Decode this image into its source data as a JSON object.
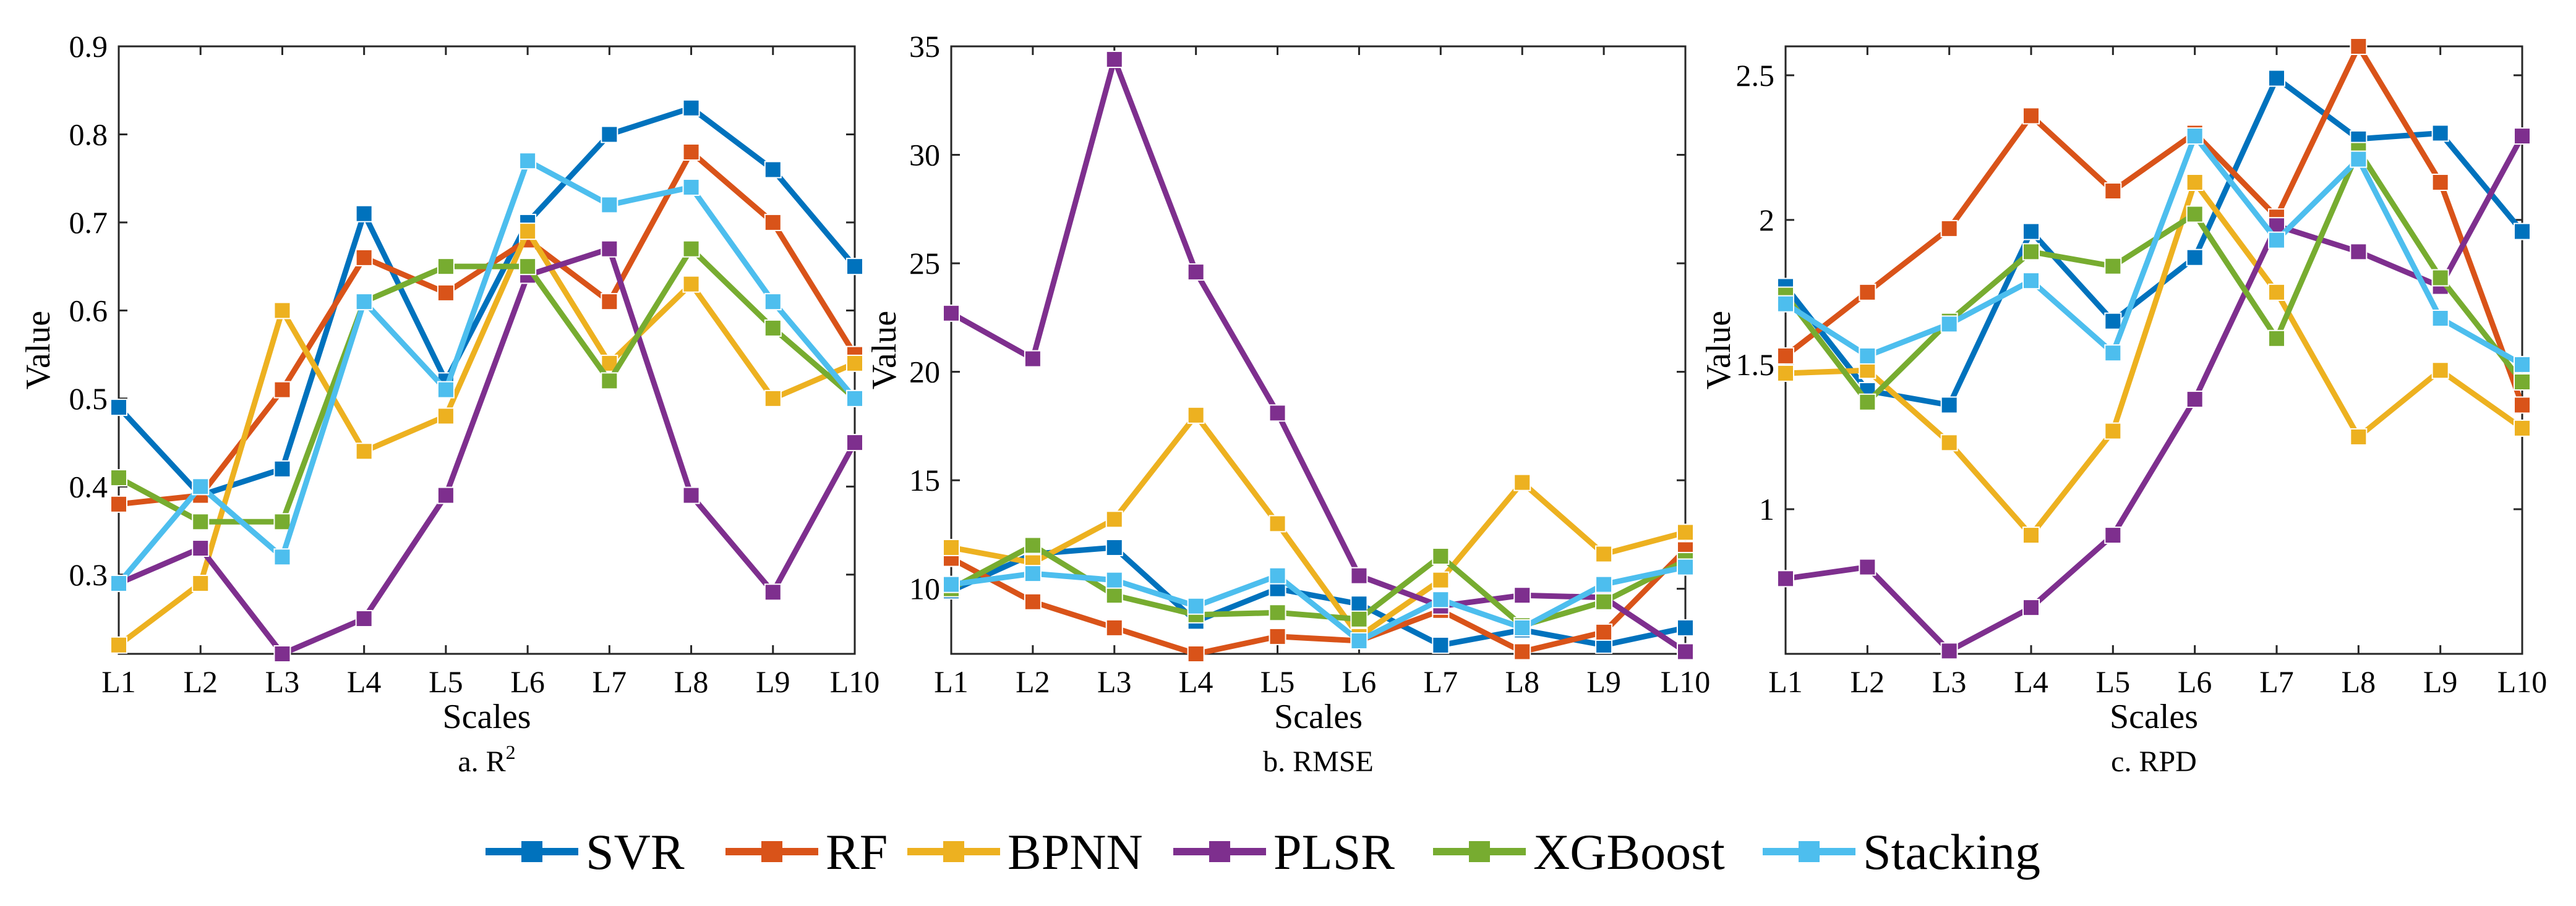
{
  "colors": {
    "SVR": "#0072BD",
    "RF": "#D95319",
    "BPNN": "#EDB120",
    "PLSR": "#7E2F8E",
    "XGBoost": "#77AC30",
    "Stacking": "#4DBEEE"
  },
  "legend": [
    "SVR",
    "RF",
    "BPNN",
    "PLSR",
    "XGBoost",
    "Stacking"
  ],
  "chart_data": [
    {
      "type": "line",
      "caption": "a. R",
      "caption_sup": "2",
      "xlabel": "Scales",
      "ylabel": "Value",
      "categories": [
        "L1",
        "L2",
        "L3",
        "L4",
        "L5",
        "L6",
        "L7",
        "L8",
        "L9",
        "L10"
      ],
      "ylim": [
        0.21,
        0.9
      ],
      "yticks": [
        0.3,
        0.4,
        0.5,
        0.6,
        0.7,
        0.8,
        0.9
      ],
      "ytick_labels": [
        "0.3",
        "0.4",
        "0.5",
        "0.6",
        "0.7",
        "0.8",
        "0.9"
      ],
      "series": [
        {
          "name": "SVR",
          "values": [
            0.49,
            0.39,
            0.42,
            0.71,
            0.52,
            0.7,
            0.8,
            0.83,
            0.76,
            0.65
          ]
        },
        {
          "name": "RF",
          "values": [
            0.38,
            0.39,
            0.51,
            0.66,
            0.62,
            0.68,
            0.61,
            0.78,
            0.7,
            0.55
          ]
        },
        {
          "name": "BPNN",
          "values": [
            0.22,
            0.29,
            0.6,
            0.44,
            0.48,
            0.69,
            0.54,
            0.63,
            0.5,
            0.54
          ]
        },
        {
          "name": "PLSR",
          "values": [
            0.29,
            0.33,
            0.21,
            0.25,
            0.39,
            0.64,
            0.67,
            0.39,
            0.28,
            0.45
          ]
        },
        {
          "name": "XGBoost",
          "values": [
            0.41,
            0.36,
            0.36,
            0.61,
            0.65,
            0.65,
            0.52,
            0.67,
            0.58,
            0.5
          ]
        },
        {
          "name": "Stacking",
          "values": [
            0.29,
            0.4,
            0.32,
            0.61,
            0.51,
            0.77,
            0.72,
            0.74,
            0.61,
            0.5
          ]
        }
      ]
    },
    {
      "type": "line",
      "caption": "b. RMSE",
      "caption_sup": "",
      "xlabel": "Scales",
      "ylabel": "Value",
      "categories": [
        "L1",
        "L2",
        "L3",
        "L4",
        "L5",
        "L6",
        "L7",
        "L8",
        "L9",
        "L10"
      ],
      "ylim": [
        7.0,
        35.0
      ],
      "yticks": [
        10,
        15,
        20,
        25,
        30,
        35
      ],
      "ytick_labels": [
        "10",
        "15",
        "20",
        "25",
        "30",
        "35"
      ],
      "series": [
        {
          "name": "SVR",
          "values": [
            9.9,
            11.6,
            11.9,
            8.5,
            10.0,
            9.3,
            7.4,
            8.1,
            7.4,
            8.2
          ]
        },
        {
          "name": "RF",
          "values": [
            11.4,
            9.4,
            8.2,
            7.0,
            7.8,
            7.6,
            9.0,
            7.1,
            8.0,
            11.8
          ]
        },
        {
          "name": "BPNN",
          "values": [
            11.9,
            11.2,
            13.2,
            18.0,
            13.0,
            7.8,
            10.4,
            14.9,
            11.6,
            12.6
          ]
        },
        {
          "name": "PLSR",
          "values": [
            22.7,
            20.6,
            34.4,
            24.6,
            18.1,
            10.6,
            9.2,
            9.7,
            9.6,
            7.1
          ]
        },
        {
          "name": "XGBoost",
          "values": [
            10.0,
            12.0,
            9.7,
            8.8,
            8.9,
            8.6,
            11.5,
            8.3,
            9.4,
            11.3
          ]
        },
        {
          "name": "Stacking",
          "values": [
            10.2,
            10.7,
            10.4,
            9.2,
            10.6,
            7.6,
            9.5,
            8.2,
            10.2,
            11.0
          ]
        }
      ]
    },
    {
      "type": "line",
      "caption": "c. RPD",
      "caption_sup": "",
      "xlabel": "Scales",
      "ylabel": "Value",
      "categories": [
        "L1",
        "L2",
        "L3",
        "L4",
        "L5",
        "L6",
        "L7",
        "L8",
        "L9",
        "L10"
      ],
      "ylim": [
        0.5,
        2.6
      ],
      "yticks": [
        1.0,
        1.5,
        2.0,
        2.5
      ],
      "ytick_labels": [
        "1",
        "1.5",
        "2",
        "2.5"
      ],
      "series": [
        {
          "name": "SVR",
          "values": [
            1.77,
            1.41,
            1.36,
            1.96,
            1.65,
            1.87,
            2.49,
            2.28,
            2.3,
            1.96
          ]
        },
        {
          "name": "RF",
          "values": [
            1.53,
            1.75,
            1.97,
            2.36,
            2.1,
            2.3,
            2.01,
            2.6,
            2.13,
            1.36
          ]
        },
        {
          "name": "BPNN",
          "values": [
            1.47,
            1.48,
            1.23,
            0.91,
            1.27,
            2.13,
            1.75,
            1.25,
            1.48,
            1.28
          ]
        },
        {
          "name": "PLSR",
          "values": [
            0.76,
            0.8,
            0.51,
            0.66,
            0.91,
            1.38,
            1.98,
            1.89,
            1.77,
            2.29
          ]
        },
        {
          "name": "XGBoost",
          "values": [
            1.74,
            1.37,
            1.65,
            1.89,
            1.84,
            2.02,
            1.59,
            2.24,
            1.8,
            1.44
          ]
        },
        {
          "name": "Stacking",
          "values": [
            1.71,
            1.53,
            1.64,
            1.79,
            1.54,
            2.29,
            1.93,
            2.21,
            1.66,
            1.5
          ]
        }
      ]
    }
  ]
}
